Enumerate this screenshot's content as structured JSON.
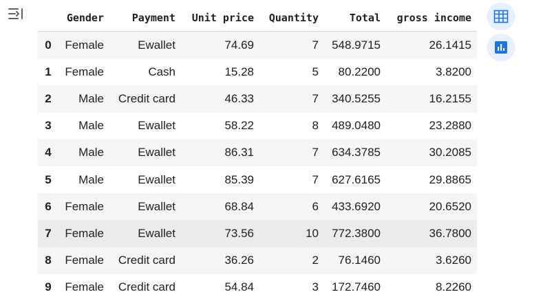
{
  "table": {
    "headers": [
      "",
      "Gender",
      "Payment",
      "Unit price",
      "Quantity",
      "Total",
      "gross income"
    ],
    "rows": [
      [
        "0",
        "Female",
        "Ewallet",
        "74.69",
        "7",
        "548.9715",
        "26.1415"
      ],
      [
        "1",
        "Female",
        "Cash",
        "15.28",
        "5",
        "80.2200",
        "3.8200"
      ],
      [
        "2",
        "Male",
        "Credit card",
        "46.33",
        "7",
        "340.5255",
        "16.2155"
      ],
      [
        "3",
        "Male",
        "Ewallet",
        "58.22",
        "8",
        "489.0480",
        "23.2880"
      ],
      [
        "4",
        "Male",
        "Ewallet",
        "86.31",
        "7",
        "634.3785",
        "30.2085"
      ],
      [
        "5",
        "Male",
        "Ewallet",
        "85.39",
        "7",
        "627.6165",
        "29.8865"
      ],
      [
        "6",
        "Female",
        "Ewallet",
        "68.84",
        "6",
        "433.6920",
        "20.6520"
      ],
      [
        "7",
        "Female",
        "Ewallet",
        "73.56",
        "10",
        "772.3800",
        "36.7800"
      ],
      [
        "8",
        "Female",
        "Credit card",
        "36.26",
        "2",
        "76.1460",
        "3.6260"
      ],
      [
        "9",
        "Female",
        "Credit card",
        "54.84",
        "3",
        "172.7460",
        "8.2260"
      ]
    ],
    "highlighted_row": 7
  },
  "icons": {
    "collapse": "collapse-output-icon",
    "table_view": "table-view-icon",
    "chart_suggest": "bar-chart-icon"
  },
  "colors": {
    "accent": "#1a73e8",
    "button_bg": "#e8f0fe",
    "row_alt": "#f5f5f5",
    "row_hover": "#ebebeb"
  }
}
